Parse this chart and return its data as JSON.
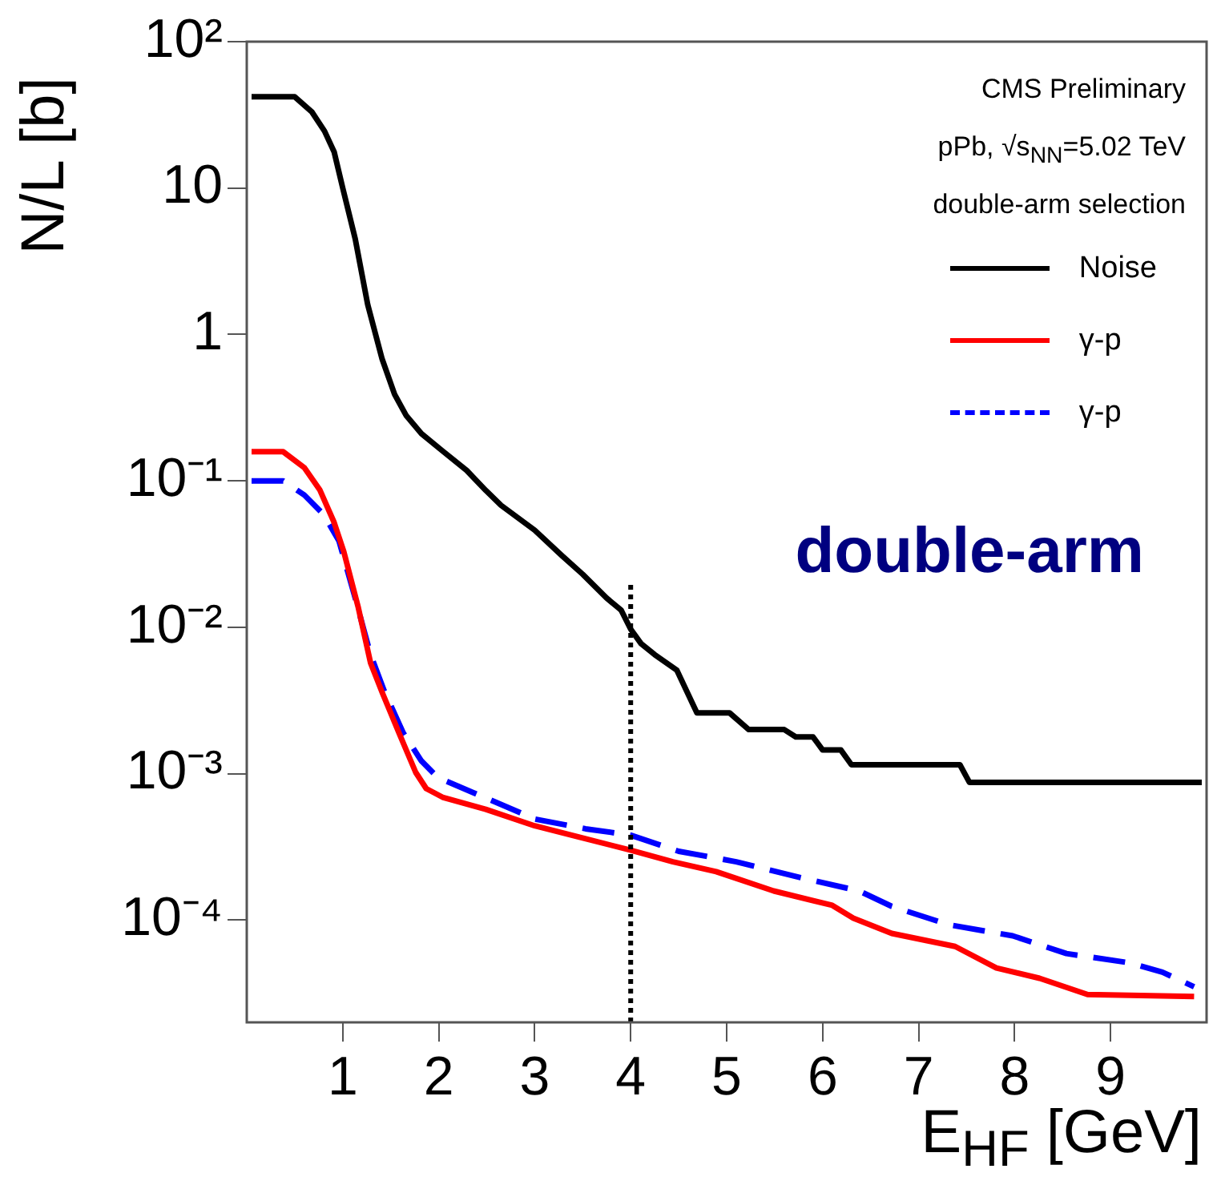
{
  "chart_data": {
    "type": "line",
    "xlabel": "E$_{HF}$ [GeV]",
    "ylabel": "N/L [b]",
    "annotations": [
      "CMS Preliminary",
      "pPb, √s$_{NN}$=5.02 TeV",
      "double-arm selection",
      "double-arm"
    ],
    "log": "y",
    "grid": false,
    "legend": "top right",
    "marker": "none",
    "xlim": [
      0,
      10
    ],
    "xticks": [
      1,
      2,
      3,
      4,
      5,
      6,
      7,
      8,
      9
    ],
    "ylim": [
      2e-05,
      100
    ],
    "yticks": [
      {
        "value": 0.0001,
        "label": "10⁻⁴"
      },
      {
        "value": 0.001,
        "label": "10⁻³"
      },
      {
        "value": 0.01,
        "label": "10⁻²"
      },
      {
        "value": 0.1,
        "label": "10⁻¹"
      },
      1,
      10,
      {
        "value": 100,
        "label": "10²"
      }
    ],
    "ref_lines": [
      {
        "axis": "x",
        "value": 4,
        "color": "#000000",
        "line_style": "dotted"
      }
    ],
    "series": [
      {
        "name": "Noise",
        "color": "#000000",
        "line_style": "solid",
        "x": [
          0.05,
          0.5,
          0.68,
          0.81,
          0.91,
          1.0,
          1.13,
          1.26,
          1.41,
          1.54,
          1.66,
          1.82,
          2.04,
          2.29,
          2.49,
          2.65,
          3.0,
          3.28,
          3.5,
          3.75,
          3.9,
          4.0,
          4.11,
          4.25,
          4.48,
          4.69,
          5.03,
          5.23,
          5.6,
          5.72,
          5.9,
          6.0,
          6.19,
          6.3,
          7.43,
          7.53,
          9.95
        ],
        "values": [
          42,
          42,
          33,
          24.5,
          17.7,
          10,
          4.5,
          1.6,
          0.68,
          0.39,
          0.28,
          0.21,
          0.16,
          0.118,
          0.086,
          0.068,
          0.046,
          0.031,
          0.023,
          0.0158,
          0.0131,
          0.0097,
          0.0077,
          0.0065,
          0.0051,
          0.0026,
          0.0026,
          0.002,
          0.002,
          0.00178,
          0.00178,
          0.00145,
          0.00145,
          0.00115,
          0.00115,
          0.00087,
          0.00087
        ]
      },
      {
        "name": "γ-p",
        "color": "#ff0000",
        "line_style": "solid",
        "x": [
          0.05,
          0.38,
          0.6,
          0.76,
          0.91,
          1.01,
          1.16,
          1.29,
          1.41,
          1.59,
          1.76,
          1.87,
          2.04,
          2.49,
          3.0,
          3.45,
          4.0,
          4.44,
          4.89,
          5.49,
          6.1,
          6.32,
          6.72,
          7.38,
          7.81,
          8.26,
          8.76,
          9.87
        ],
        "values": [
          0.158,
          0.158,
          0.123,
          0.087,
          0.052,
          0.033,
          0.0138,
          0.0057,
          0.0036,
          0.00187,
          0.00102,
          0.00079,
          0.00069,
          0.00057,
          0.00044,
          0.00037,
          0.0003,
          0.00025,
          0.000214,
          0.000158,
          0.000126,
          0.000103,
          8.1e-05,
          6.6e-05,
          4.7e-05,
          4e-05,
          3.1e-05,
          3e-05
        ]
      },
      {
        "name": "γ-p",
        "color": "#0000ff",
        "line_style": "dashed",
        "x": [
          0.05,
          0.38,
          0.6,
          0.8,
          0.96,
          1.13,
          1.29,
          1.43,
          1.63,
          1.82,
          1.99,
          2.45,
          3.0,
          3.53,
          4.0,
          4.5,
          5.1,
          5.77,
          6.38,
          6.72,
          7.31,
          7.98,
          8.54,
          9.2,
          9.54,
          9.87
        ],
        "values": [
          0.1,
          0.1,
          0.08,
          0.059,
          0.039,
          0.0158,
          0.0065,
          0.0037,
          0.0019,
          0.00122,
          0.00094,
          0.0007,
          0.00049,
          0.00042,
          0.00038,
          0.000295,
          0.00025,
          0.000195,
          0.000158,
          0.000124,
          9.3e-05,
          7.8e-05,
          5.9e-05,
          5.1e-05,
          4.4e-05,
          3.5e-05
        ]
      }
    ]
  }
}
